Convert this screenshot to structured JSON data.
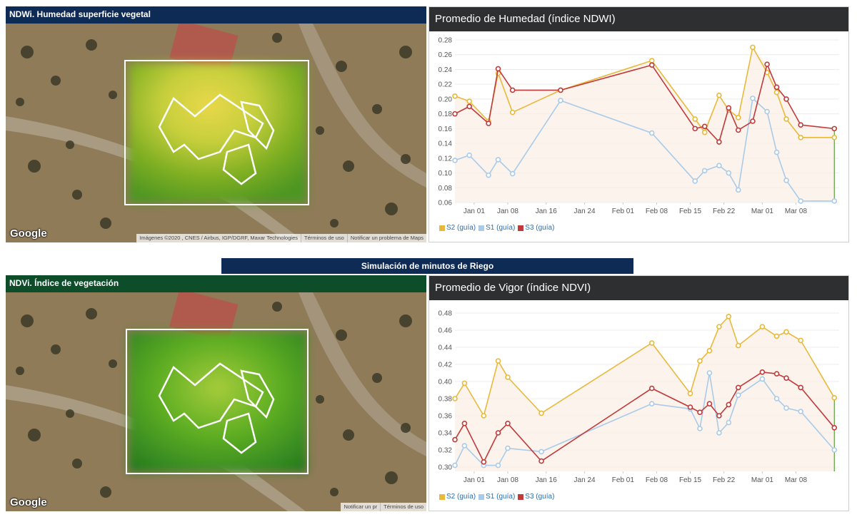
{
  "ndwi_panel": {
    "header": "NDWi. Humedad superficie vegetal",
    "header_color": "#0e2b55",
    "google_label": "Google",
    "attribution": [
      "Imágenes ©2020 , CNES / Airbus, IGP/DGRF, Maxar Technologies",
      "Términos de uso",
      "Notificar un problema de Maps"
    ]
  },
  "ndvi_panel": {
    "header": "NDVi. Índice de vegetación",
    "header_color": "#0e4d2a",
    "google_label": "Google",
    "attribution": [
      "Notificar un pr",
      "Términos de uso"
    ]
  },
  "simulation_banner": "Simulación de minutos de Riego",
  "colors": {
    "s2": "#e8b93a",
    "s1": "#a9cbe8",
    "s3": "#c03a3a",
    "chart_header": "#2e2f31",
    "fill": "#fbeee6"
  },
  "chart_data": [
    {
      "type": "line",
      "title": "Promedio de Humedad (índice NDWI)",
      "x_ticks": [
        "Jan 01",
        "Jan 08",
        "Jan 16",
        "Jan 24",
        "Feb 01",
        "Feb 08",
        "Feb 15",
        "Feb 22",
        "Mar 01",
        "Mar 08"
      ],
      "x_tick_days": [
        0,
        7,
        15,
        23,
        31,
        38,
        45,
        52,
        60,
        67
      ],
      "x_range": [
        -4,
        76
      ],
      "y_ticks": [
        "0.28",
        "0.26",
        "0.24",
        "0.22",
        "0.20",
        "0.18",
        "0.16",
        "0.14",
        "0.12",
        "0.10",
        "0.08",
        "0.06"
      ],
      "ylim": [
        0.06,
        0.28
      ],
      "legend": [
        "S2 (guía)",
        "S1 (guía)",
        "S3 (guía)"
      ],
      "series": [
        {
          "name": "S2 (guía)",
          "color": "#e8b93a",
          "x": [
            -4,
            -1,
            3,
            5,
            8,
            18,
            37,
            46,
            48,
            51,
            53,
            55,
            58,
            61,
            63,
            65,
            68,
            75
          ],
          "y": [
            0.204,
            0.197,
            0.17,
            0.235,
            0.182,
            0.212,
            0.252,
            0.173,
            0.155,
            0.205,
            0.185,
            0.175,
            0.27,
            0.236,
            0.209,
            0.173,
            0.148,
            0.148
          ]
        },
        {
          "name": "S1 (guía)",
          "color": "#a9cbe8",
          "x": [
            -4,
            -1,
            3,
            5,
            8,
            18,
            37,
            46,
            48,
            51,
            53,
            55,
            58,
            61,
            63,
            65,
            68,
            75
          ],
          "y": [
            0.117,
            0.124,
            0.097,
            0.118,
            0.099,
            0.198,
            0.154,
            0.089,
            0.103,
            0.11,
            0.1,
            0.077,
            0.201,
            0.183,
            0.128,
            0.09,
            0.062,
            0.062
          ]
        },
        {
          "name": "S3 (guía)",
          "color": "#c03a3a",
          "x": [
            -4,
            -1,
            3,
            5,
            8,
            18,
            37,
            46,
            48,
            51,
            53,
            55,
            58,
            61,
            63,
            65,
            68,
            75
          ],
          "y": [
            0.18,
            0.19,
            0.167,
            0.241,
            0.212,
            0.212,
            0.246,
            0.16,
            0.163,
            0.142,
            0.188,
            0.158,
            0.17,
            0.247,
            0.216,
            0.2,
            0.165,
            0.16
          ]
        }
      ]
    },
    {
      "type": "line",
      "title": "Promedio de Vigor (índice NDVI)",
      "x_ticks": [
        "Jan 01",
        "Jan 08",
        "Jan 16",
        "Jan 24",
        "Feb 01",
        "Feb 08",
        "Feb 15",
        "Feb 22",
        "Mar 01",
        "Mar 08"
      ],
      "x_tick_days": [
        0,
        7,
        15,
        23,
        31,
        38,
        45,
        52,
        60,
        67
      ],
      "x_range": [
        -4,
        76
      ],
      "y_ticks": [
        "0.48",
        "0.46",
        "0.44",
        "0.42",
        "0.40",
        "0.38",
        "0.36",
        "0.34",
        "0.32",
        "0.30"
      ],
      "ylim": [
        0.295,
        0.485
      ],
      "legend": [
        "S2 (guía)",
        "S1 (guía)",
        "S3 (guía)"
      ],
      "series": [
        {
          "name": "S2 (guía)",
          "color": "#e8b93a",
          "x": [
            -4,
            -2,
            2,
            5,
            7,
            14,
            37,
            45,
            47,
            49,
            51,
            53,
            55,
            60,
            63,
            65,
            68,
            75
          ],
          "y": [
            0.38,
            0.398,
            0.36,
            0.424,
            0.405,
            0.363,
            0.445,
            0.386,
            0.424,
            0.436,
            0.464,
            0.476,
            0.442,
            0.464,
            0.453,
            0.458,
            0.448,
            0.381
          ]
        },
        {
          "name": "S1 (guía)",
          "color": "#a9cbe8",
          "x": [
            -4,
            -2,
            2,
            5,
            7,
            14,
            37,
            45,
            47,
            49,
            51,
            53,
            55,
            60,
            63,
            65,
            68,
            75
          ],
          "y": [
            0.302,
            0.325,
            0.302,
            0.302,
            0.322,
            0.318,
            0.374,
            0.368,
            0.345,
            0.41,
            0.34,
            0.352,
            0.384,
            0.403,
            0.38,
            0.369,
            0.365,
            0.32
          ]
        },
        {
          "name": "S3 (guía)",
          "color": "#c03a3a",
          "x": [
            -4,
            -2,
            2,
            5,
            7,
            14,
            37,
            45,
            47,
            49,
            51,
            53,
            55,
            60,
            63,
            65,
            68,
            75
          ],
          "y": [
            0.332,
            0.351,
            0.306,
            0.34,
            0.351,
            0.307,
            0.392,
            0.37,
            0.364,
            0.374,
            0.36,
            0.373,
            0.393,
            0.411,
            0.409,
            0.404,
            0.393,
            0.346
          ]
        }
      ]
    }
  ]
}
